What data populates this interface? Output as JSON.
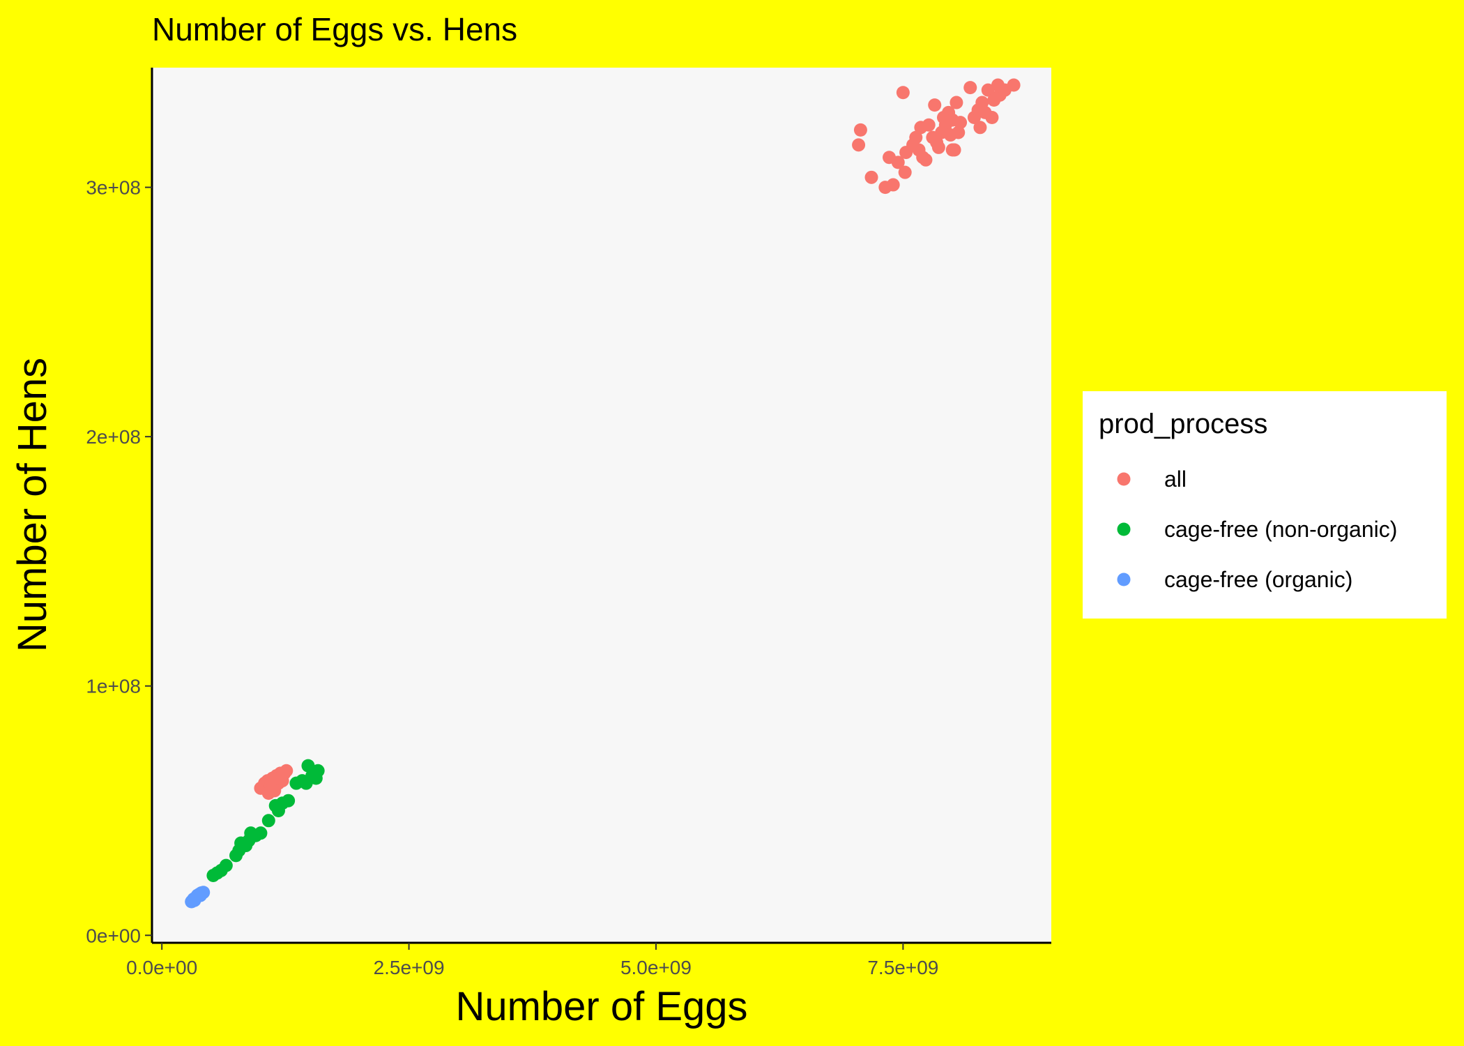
{
  "chart_data": {
    "type": "scatter",
    "title": "Number of Eggs vs. Hens",
    "xlabel": "Number of Eggs",
    "ylabel": "Number of Hens",
    "xlim": [
      -100000000,
      9000000000
    ],
    "ylim": [
      -3000000,
      348000000
    ],
    "x_ticks": [
      {
        "value": 0,
        "label": "0.0e+00"
      },
      {
        "value": 2500000000,
        "label": "2.5e+09"
      },
      {
        "value": 5000000000,
        "label": "5.0e+09"
      },
      {
        "value": 7500000000,
        "label": "7.5e+09"
      }
    ],
    "y_ticks": [
      {
        "value": 0,
        "label": "0e+00"
      },
      {
        "value": 100000000,
        "label": "1e+08"
      },
      {
        "value": 200000000,
        "label": "2e+08"
      },
      {
        "value": 300000000,
        "label": "3e+08"
      }
    ],
    "grid": false,
    "legend_position": "right",
    "legend_title": "prod_process",
    "series": [
      {
        "name": "all",
        "color": "#f8766d",
        "points": [
          [
            7050000000.0,
            317000000.0
          ],
          [
            7070000000.0,
            323000000.0
          ],
          [
            7180000000.0,
            304000000.0
          ],
          [
            7320000000.0,
            300000000.0
          ],
          [
            7400000000.0,
            301000000.0
          ],
          [
            7360000000.0,
            312000000.0
          ],
          [
            7450000000.0,
            310000000.0
          ],
          [
            7520000000.0,
            306000000.0
          ],
          [
            7530000000.0,
            314000000.0
          ],
          [
            7600000000.0,
            317000000.0
          ],
          [
            7630000000.0,
            320000000.0
          ],
          [
            7660000000.0,
            315000000.0
          ],
          [
            7680000000.0,
            324000000.0
          ],
          [
            7700000000.0,
            312000000.0
          ],
          [
            7730000000.0,
            311000000.0
          ],
          [
            7760000000.0,
            325000000.0
          ],
          [
            7800000000.0,
            320000000.0
          ],
          [
            7820000000.0,
            333000000.0
          ],
          [
            7840000000.0,
            318000000.0
          ],
          [
            7860000000.0,
            316000000.0
          ],
          [
            7890000000.0,
            322000000.0
          ],
          [
            7910000000.0,
            328000000.0
          ],
          [
            7930000000.0,
            325000000.0
          ],
          [
            7960000000.0,
            330000000.0
          ],
          [
            7980000000.0,
            321000000.0
          ],
          [
            8000000000.0,
            327000000.0
          ],
          [
            8020000000.0,
            315000000.0
          ],
          [
            8040000000.0,
            334000000.0
          ],
          [
            8060000000.0,
            322000000.0
          ],
          [
            8080000000.0,
            326000000.0
          ],
          [
            7500000000.0,
            338000000.0
          ],
          [
            8180000000.0,
            340000000.0
          ],
          [
            8220000000.0,
            328000000.0
          ],
          [
            8260000000.0,
            331000000.0
          ],
          [
            8280000000.0,
            324000000.0
          ],
          [
            8300000000.0,
            334000000.0
          ],
          [
            8330000000.0,
            330000000.0
          ],
          [
            8360000000.0,
            339000000.0
          ],
          [
            8400000000.0,
            328000000.0
          ],
          [
            8420000000.0,
            335000000.0
          ],
          [
            8460000000.0,
            341000000.0
          ],
          [
            8480000000.0,
            337000000.0
          ],
          [
            8530000000.0,
            339000000.0
          ],
          [
            8620000000.0,
            341000000.0
          ],
          [
            8000000000.0,
            315000000.0
          ],
          [
            1000000000.0,
            59000000.0
          ],
          [
            1040000000.0,
            61000000.0
          ],
          [
            1070000000.0,
            62000000.0
          ],
          [
            1100000000.0,
            60000000.0
          ],
          [
            1120000000.0,
            63000000.0
          ],
          [
            1140000000.0,
            58000000.0
          ],
          [
            1160000000.0,
            64000000.0
          ],
          [
            1180000000.0,
            61000000.0
          ],
          [
            1200000000.0,
            65000000.0
          ],
          [
            1220000000.0,
            62000000.0
          ],
          [
            1240000000.0,
            65000000.0
          ],
          [
            1260000000.0,
            66000000.0
          ],
          [
            1080000000.0,
            57000000.0
          ],
          [
            1130000000.0,
            60000000.0
          ],
          [
            1190000000.0,
            63000000.0
          ]
        ]
      },
      {
        "name": "cage-free (non-organic)",
        "color": "#00ba38",
        "points": [
          [
            520000000.0,
            24000000.0
          ],
          [
            560000000.0,
            25000000.0
          ],
          [
            600000000.0,
            26000000.0
          ],
          [
            650000000.0,
            28000000.0
          ],
          [
            750000000.0,
            32000000.0
          ],
          [
            780000000.0,
            34000000.0
          ],
          [
            800000000.0,
            37000000.0
          ],
          [
            850000000.0,
            36000000.0
          ],
          [
            880000000.0,
            38000000.0
          ],
          [
            900000000.0,
            41000000.0
          ],
          [
            950000000.0,
            40000000.0
          ],
          [
            1000000000.0,
            41000000.0
          ],
          [
            1080000000.0,
            46000000.0
          ],
          [
            1150000000.0,
            52000000.0
          ],
          [
            1180000000.0,
            50000000.0
          ],
          [
            1220000000.0,
            53000000.0
          ],
          [
            1280000000.0,
            54000000.0
          ],
          [
            1360000000.0,
            61000000.0
          ],
          [
            1420000000.0,
            62000000.0
          ],
          [
            1460000000.0,
            61000000.0
          ],
          [
            1480000000.0,
            68000000.0
          ],
          [
            1520000000.0,
            64000000.0
          ],
          [
            1560000000.0,
            63000000.0
          ],
          [
            1580000000.0,
            66000000.0
          ]
        ]
      },
      {
        "name": "cage-free (organic)",
        "color": "#619cff",
        "points": [
          [
            300000000.0,
            13500000.0
          ],
          [
            320000000.0,
            14500000.0
          ],
          [
            340000000.0,
            15000000.0
          ],
          [
            360000000.0,
            16000000.0
          ],
          [
            380000000.0,
            16500000.0
          ],
          [
            400000000.0,
            17000000.0
          ],
          [
            420000000.0,
            17200000.0
          ],
          [
            330000000.0,
            14000000.0
          ],
          [
            390000000.0,
            16000000.0
          ]
        ]
      }
    ]
  }
}
